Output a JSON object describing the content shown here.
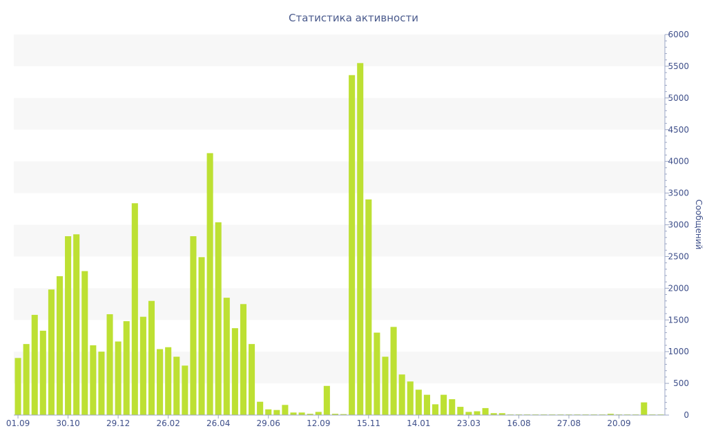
{
  "chart_data": {
    "type": "bar",
    "title": "Статистика активности",
    "ylabel": "Сообщений",
    "xlabel": "",
    "ylim": [
      0,
      6000
    ],
    "yticks": [
      0,
      500,
      1000,
      1500,
      2000,
      2500,
      3000,
      3500,
      4000,
      4500,
      5000,
      5500,
      6000
    ],
    "y_axis_side": "right",
    "grid": "alternating horizontal bands",
    "bar_color": "#bde033",
    "band_color": "#f7f7f7",
    "text_color": "#3e4f8a",
    "x_tick_labels": [
      {
        "index": 0,
        "label": "01.09"
      },
      {
        "index": 6,
        "label": "30.10"
      },
      {
        "index": 12,
        "label": "29.12"
      },
      {
        "index": 18,
        "label": "26.02"
      },
      {
        "index": 24,
        "label": "26.04"
      },
      {
        "index": 30,
        "label": "29.06"
      },
      {
        "index": 36,
        "label": "12.09"
      },
      {
        "index": 42,
        "label": "15.11"
      },
      {
        "index": 48,
        "label": "14.01"
      },
      {
        "index": 54,
        "label": "23.03"
      },
      {
        "index": 60,
        "label": "16.08"
      },
      {
        "index": 66,
        "label": "27.08"
      },
      {
        "index": 72,
        "label": "20.09"
      }
    ],
    "values": [
      900,
      1120,
      1580,
      1330,
      1980,
      2190,
      2820,
      2850,
      2270,
      1100,
      1000,
      1590,
      1160,
      1480,
      3340,
      1550,
      1800,
      1040,
      1070,
      920,
      780,
      2820,
      2490,
      4130,
      3040,
      1850,
      1370,
      1750,
      1120,
      210,
      90,
      80,
      160,
      40,
      40,
      20,
      50,
      460,
      20,
      15,
      5360,
      5550,
      3400,
      1300,
      920,
      1390,
      640,
      530,
      400,
      320,
      170,
      320,
      250,
      130,
      50,
      60,
      110,
      30,
      30,
      10,
      10,
      10,
      10,
      10,
      10,
      10,
      10,
      10,
      10,
      10,
      10,
      20,
      10,
      10,
      10,
      200,
      10,
      10
    ]
  }
}
